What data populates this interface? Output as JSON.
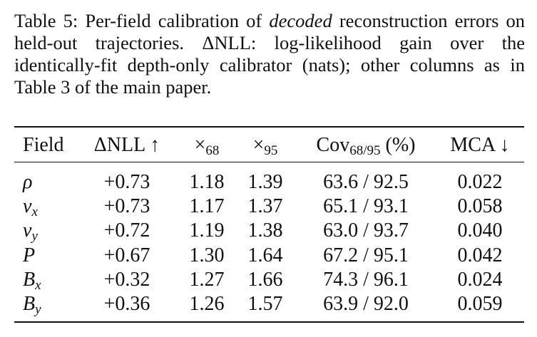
{
  "caption": {
    "label": "Table 5:",
    "parts": [
      "Per-field calibration of",
      "decoded",
      "reconstruction errors on held-out trajectories. ΔNLL: log-likelihood gain over the identically-fit depth-only calibrator (nats); other columns as in Table 3 of the main paper."
    ]
  },
  "table": {
    "columns": [
      {
        "text": "Field"
      },
      {
        "text": "ΔNLL ↑"
      },
      {
        "text": "×",
        "sub": "68"
      },
      {
        "text": "×",
        "sub": "95"
      },
      {
        "text": "Cov",
        "sub": "68/95",
        "after": " (%)"
      },
      {
        "text": "MCA ↓"
      }
    ],
    "rows": [
      [
        {
          "text": "ρ"
        },
        "+0.73",
        "1.18",
        "1.39",
        "63.6 / 92.5",
        "0.022"
      ],
      [
        {
          "text": "v",
          "sub": "x"
        },
        "+0.73",
        "1.17",
        "1.37",
        "65.1 / 93.1",
        "0.058"
      ],
      [
        {
          "text": "v",
          "sub": "y"
        },
        "+0.72",
        "1.19",
        "1.38",
        "63.0 / 93.7",
        "0.040"
      ],
      [
        {
          "text": "P"
        },
        "+0.67",
        "1.30",
        "1.64",
        "67.2 / 95.1",
        "0.042"
      ],
      [
        {
          "text": "B",
          "sub": "x"
        },
        "+0.32",
        "1.27",
        "1.66",
        "74.3 / 96.1",
        "0.024"
      ],
      [
        {
          "text": "B",
          "sub": "y"
        },
        "+0.36",
        "1.26",
        "1.57",
        "63.9 / 92.0",
        "0.059"
      ]
    ]
  }
}
